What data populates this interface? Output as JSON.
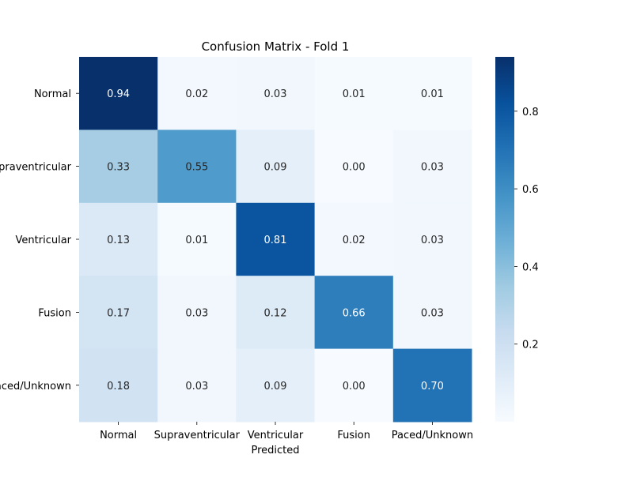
{
  "chart_data": {
    "type": "heatmap",
    "title": "Confusion Matrix - Fold 1",
    "xlabel": "Predicted",
    "ylabel": "",
    "x_categories": [
      "Normal",
      "Supraventricular",
      "Ventricular",
      "Fusion",
      "Paced/Unknown"
    ],
    "y_categories": [
      "Normal",
      "Supraventricular",
      "Ventricular",
      "Fusion",
      "Paced/Unknown"
    ],
    "matrix": [
      [
        0.94,
        0.02,
        0.03,
        0.01,
        0.01
      ],
      [
        0.33,
        0.55,
        0.09,
        0.0,
        0.03
      ],
      [
        0.13,
        0.01,
        0.81,
        0.02,
        0.03
      ],
      [
        0.17,
        0.03,
        0.12,
        0.66,
        0.03
      ],
      [
        0.18,
        0.03,
        0.09,
        0.0,
        0.7
      ]
    ],
    "value_format": "0.00",
    "colormap": "Blues",
    "color_low": "#f7fbff",
    "color_high": "#08306b",
    "colorbar": {
      "min": 0.0,
      "max": 0.94,
      "ticks": [
        0.2,
        0.4,
        0.6,
        0.8
      ]
    }
  }
}
